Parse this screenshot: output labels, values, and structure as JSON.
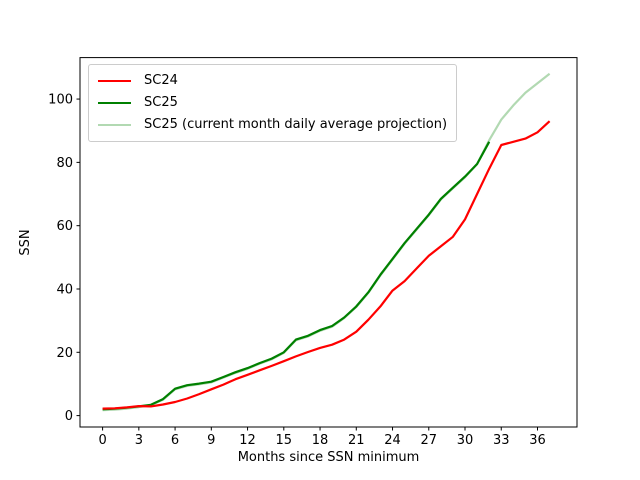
{
  "chart_data": {
    "type": "line",
    "title": "",
    "xlabel": "Months since SSN minimum",
    "ylabel": "SSN",
    "xlim": [
      -1.87,
      39.27
    ],
    "ylim": [
      -3.6,
      113.1
    ],
    "xticks": [
      0,
      3,
      6,
      9,
      12,
      15,
      18,
      21,
      24,
      27,
      30,
      33,
      36
    ],
    "yticks": [
      0,
      20,
      40,
      60,
      80,
      100
    ],
    "grid": false,
    "legend_position": "upper left",
    "line_width": 2.2,
    "axis_color": "#000000",
    "series": [
      {
        "name": "SC24",
        "color": "#ff0000",
        "x": [
          0,
          1,
          2,
          3,
          4,
          5,
          6,
          7,
          8,
          9,
          10,
          11,
          12,
          13,
          14,
          15,
          16,
          17,
          18,
          19,
          20,
          21,
          22,
          23,
          24,
          25,
          26,
          27,
          28,
          29,
          30,
          31,
          32,
          33,
          34,
          35,
          36,
          37
        ],
        "values": [
          2.2,
          2.3,
          2.6,
          3.0,
          2.9,
          3.5,
          4.3,
          5.4,
          6.8,
          8.3,
          9.8,
          11.5,
          12.9,
          14.3,
          15.7,
          17.2,
          18.7,
          20.1,
          21.4,
          22.4,
          24.0,
          26.5,
          30.3,
          34.5,
          39.5,
          42.5,
          46.5,
          50.5,
          53.5,
          56.5,
          62.0,
          70.0,
          78.0,
          85.5,
          86.5,
          87.5,
          89.5,
          93.0
        ]
      },
      {
        "name": "SC25",
        "color": "#008000",
        "x": [
          0,
          1,
          2,
          3,
          4,
          5,
          6,
          7,
          8,
          9,
          10,
          11,
          12,
          13,
          14,
          15,
          16,
          17,
          18,
          19,
          20,
          21,
          22,
          23,
          24,
          25,
          26,
          27,
          28,
          29,
          30,
          31,
          32
        ],
        "values": [
          2.0,
          2.2,
          2.5,
          2.9,
          3.4,
          5.2,
          8.5,
          9.6,
          10.1,
          10.7,
          12.2,
          13.7,
          15.0,
          16.6,
          18.0,
          20.0,
          24.0,
          25.2,
          27.0,
          28.3,
          31.0,
          34.5,
          39.0,
          44.5,
          49.5,
          54.5,
          59.0,
          63.5,
          68.5,
          72.0,
          75.5,
          79.5,
          86.5
        ]
      },
      {
        "name": "SC25 (current month daily average projection)",
        "color": "#b2d9b2",
        "x": [
          0,
          1,
          2,
          3,
          4,
          5,
          6,
          7,
          8,
          9,
          10,
          11,
          12,
          13,
          14,
          15,
          16,
          17,
          18,
          19,
          20,
          21,
          22,
          23,
          24,
          25,
          26,
          27,
          28,
          29,
          30,
          31,
          32,
          33,
          34,
          35,
          36,
          37
        ],
        "values": [
          1.7,
          1.9,
          2.2,
          2.7,
          3.3,
          5.0,
          8.3,
          9.4,
          9.9,
          10.5,
          12.0,
          13.5,
          14.8,
          16.4,
          17.8,
          19.8,
          23.8,
          25.0,
          26.8,
          28.1,
          30.8,
          34.3,
          38.8,
          44.3,
          49.3,
          54.3,
          58.8,
          63.3,
          68.3,
          71.8,
          75.3,
          79.5,
          87.0,
          93.5,
          98.0,
          102.0,
          105.0,
          108.0
        ]
      }
    ]
  }
}
